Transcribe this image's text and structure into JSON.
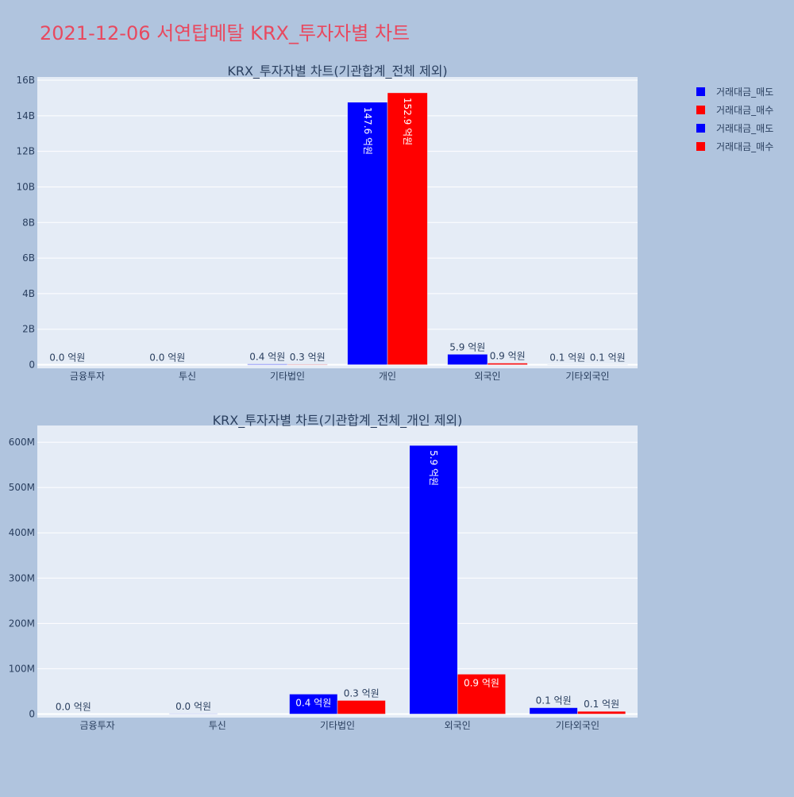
{
  "title": "2021-12-06 서연탑메탈 KRX_투자자별 차트",
  "legend": [
    {
      "label": "거래대금_매도",
      "color": "#0000ff"
    },
    {
      "label": "거래대금_매수",
      "color": "#ff0000"
    },
    {
      "label": "거래대금_매도",
      "color": "#0000ff"
    },
    {
      "label": "거래대금_매수",
      "color": "#ff0000"
    }
  ],
  "colors": {
    "sell": "#0000ff",
    "buy": "#ff0000",
    "plot_bg": "#e5ecf6",
    "page_bg": "#b0c4de",
    "title": "#e8495f"
  },
  "chart_data": [
    {
      "type": "bar",
      "title": "KRX_투자자별 차트(기관합계_전체 제외)",
      "categories": [
        "금융투자",
        "투신",
        "기타법인",
        "개인",
        "외국인",
        "기타외국인"
      ],
      "ylim": [
        0,
        16000000000
      ],
      "yticks": [
        0,
        2000000000,
        4000000000,
        6000000000,
        8000000000,
        10000000000,
        12000000000,
        14000000000,
        16000000000
      ],
      "ytick_labels": [
        "0",
        "2B",
        "4B",
        "6B",
        "8B",
        "10B",
        "12B",
        "14B",
        "16B"
      ],
      "grid": true,
      "series": [
        {
          "name": "거래대금_매도",
          "color": "#0000ff",
          "values": [
            0,
            0,
            40000000,
            14760000000,
            590000000,
            10000000
          ],
          "labels": [
            "0.0 억원",
            "0.0 억원",
            "0.4 억원",
            "147.6 억원",
            "5.9 억원",
            "0.1 억원"
          ]
        },
        {
          "name": "거래대금_매수",
          "color": "#ff0000",
          "values": [
            0,
            0,
            30000000,
            15290000000,
            90000000,
            10000000
          ],
          "labels": [
            "",
            "",
            "0.3 억원",
            "152.9 억원",
            "0.9 억원",
            "0.1 억원"
          ]
        }
      ]
    },
    {
      "type": "bar",
      "title": "KRX_투자자별 차트(기관합계_전체_개인 제외)",
      "categories": [
        "금융투자",
        "투신",
        "기타법인",
        "외국인",
        "기타외국인"
      ],
      "ylim": [
        0,
        630000000
      ],
      "yticks": [
        0,
        100000000,
        200000000,
        300000000,
        400000000,
        500000000,
        600000000
      ],
      "ytick_labels": [
        "0",
        "100M",
        "200M",
        "300M",
        "400M",
        "500M",
        "600M"
      ],
      "grid": true,
      "series": [
        {
          "name": "거래대금_매도",
          "color": "#0000ff",
          "values": [
            0,
            1000000,
            44000000,
            593000000,
            14000000
          ],
          "labels": [
            "0.0 억원",
            "0.0 억원",
            "0.4 억원",
            "5.9 억원",
            "0.1 억원"
          ]
        },
        {
          "name": "거래대금_매수",
          "color": "#ff0000",
          "values": [
            0,
            0,
            30000000,
            88000000,
            6000000
          ],
          "labels": [
            "",
            "",
            "0.3 억원",
            "0.9 억원",
            "0.1 억원"
          ]
        }
      ]
    }
  ]
}
